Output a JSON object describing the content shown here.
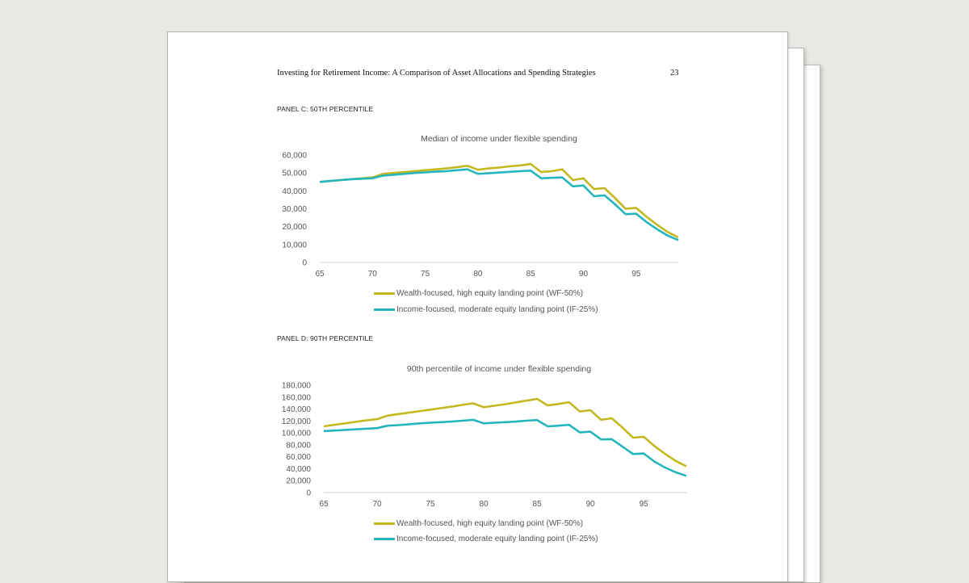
{
  "document": {
    "running_title": "Investing for Retirement Income: A Comparison of Asset Allocations and Spending Strategies",
    "page_number": "23"
  },
  "colors": {
    "page_background": "#e9e8e3",
    "wealth_focused": "#c3b81f",
    "income_focused": "#25b6bd",
    "axis": "#d0d0d0"
  },
  "panels": [
    {
      "label": "PANEL C: 50TH PERCENTILE",
      "legend": [
        "Wealth-focused, high equity landing point (WF-50%)",
        "Income-focused, moderate equity landing point (IF-25%)"
      ]
    },
    {
      "label": "PANEL D: 90TH PERCENTILE",
      "legend": [
        "Wealth-focused, high equity landing point (WF-50%)",
        "Income-focused, moderate equity landing point (IF-25%)"
      ]
    }
  ],
  "chart_data": [
    {
      "type": "line",
      "title": "Median of income under flexible spending",
      "xlabel": "",
      "ylabel": "",
      "xlim": [
        65,
        99
      ],
      "ylim": [
        0,
        60000
      ],
      "x_ticks": [
        65,
        70,
        75,
        80,
        85,
        90,
        95
      ],
      "y_ticks": [
        0,
        10000,
        20000,
        30000,
        40000,
        50000,
        60000
      ],
      "y_tick_labels": [
        "0",
        "10,000",
        "20,000",
        "30,000",
        "40,000",
        "50,000",
        "60,000"
      ],
      "grid": false,
      "legend_position": "bottom",
      "x": [
        65,
        66,
        67,
        68,
        69,
        70,
        71,
        72,
        73,
        74,
        75,
        76,
        77,
        78,
        79,
        80,
        81,
        82,
        83,
        84,
        85,
        86,
        87,
        88,
        89,
        90,
        91,
        92,
        93,
        94,
        95,
        96,
        97,
        98,
        99
      ],
      "series": [
        {
          "name": "Wealth-focused, high equity landing point (WF-50%)",
          "color": "#c3b81f",
          "values": [
            45000,
            45500,
            46000,
            46500,
            47000,
            47500,
            49500,
            50000,
            50500,
            51000,
            51500,
            52000,
            52500,
            53200,
            54000,
            51800,
            52500,
            53000,
            53700,
            54200,
            55000,
            50500,
            51000,
            52000,
            46000,
            47000,
            41000,
            41500,
            36000,
            30000,
            30500,
            25500,
            21000,
            17000,
            14000
          ]
        },
        {
          "name": "Income-focused, moderate equity landing point (IF-25%)",
          "color": "#25b6bd",
          "values": [
            45000,
            45500,
            46000,
            46500,
            46800,
            47000,
            48500,
            49000,
            49500,
            50000,
            50300,
            50700,
            51000,
            51500,
            52000,
            49500,
            49800,
            50200,
            50600,
            51000,
            51300,
            47000,
            47300,
            47500,
            42500,
            43000,
            37000,
            37500,
            32500,
            27000,
            27200,
            22500,
            18500,
            15000,
            12500
          ]
        }
      ]
    },
    {
      "type": "line",
      "title": "90th percentile of income under flexible spending",
      "xlabel": "",
      "ylabel": "",
      "xlim": [
        65,
        99
      ],
      "ylim": [
        0,
        180000
      ],
      "x_ticks": [
        65,
        70,
        75,
        80,
        85,
        90,
        95
      ],
      "y_ticks": [
        0,
        20000,
        40000,
        60000,
        80000,
        100000,
        120000,
        140000,
        160000,
        180000
      ],
      "y_tick_labels": [
        "0",
        "20,000",
        "40,000",
        "60,000",
        "80,000",
        "100,000",
        "120,000",
        "140,000",
        "160,000",
        "180,000"
      ],
      "grid": false,
      "legend_position": "bottom",
      "x": [
        65,
        66,
        67,
        68,
        69,
        70,
        71,
        72,
        73,
        74,
        75,
        76,
        77,
        78,
        79,
        80,
        81,
        82,
        83,
        84,
        85,
        86,
        87,
        88,
        89,
        90,
        91,
        92,
        93,
        94,
        95,
        96,
        97,
        98,
        99
      ],
      "series": [
        {
          "name": "Wealth-focused, high equity landing point (WF-50%)",
          "color": "#c3b81f",
          "values": [
            111000,
            113500,
            116000,
            118500,
            121000,
            123000,
            129000,
            131500,
            134000,
            136500,
            139000,
            141500,
            144000,
            147000,
            149500,
            143000,
            145500,
            148000,
            151000,
            154000,
            157000,
            146000,
            148500,
            151500,
            136000,
            138000,
            122000,
            124500,
            109000,
            92000,
            93500,
            78000,
            65000,
            53000,
            44000
          ]
        },
        {
          "name": "Income-focused, moderate equity landing point (IF-25%)",
          "color": "#25b6bd",
          "values": [
            103000,
            104000,
            105000,
            106000,
            107000,
            108000,
            112000,
            113000,
            114500,
            116000,
            117000,
            118000,
            119000,
            120500,
            122000,
            116000,
            117000,
            118000,
            119000,
            120500,
            121500,
            111000,
            112000,
            113500,
            101000,
            102000,
            89000,
            89500,
            77000,
            64500,
            65500,
            52000,
            42000,
            34000,
            28000
          ]
        }
      ]
    }
  ]
}
